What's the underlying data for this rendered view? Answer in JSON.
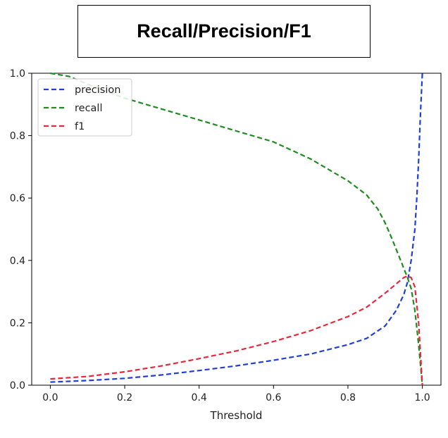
{
  "chart_data": {
    "type": "line",
    "title": "Recall/Precision/F1",
    "xlabel": "Threshold",
    "ylabel": "",
    "xlim": [
      -0.05,
      1.05
    ],
    "ylim": [
      0.0,
      1.0
    ],
    "xticks": [
      "0.0",
      "0.2",
      "0.4",
      "0.6",
      "0.8",
      "1.0"
    ],
    "yticks": [
      "0.0",
      "0.2",
      "0.4",
      "0.6",
      "0.8",
      "1.0"
    ],
    "grid": false,
    "legend_position": "top-left",
    "series": [
      {
        "name": "precision",
        "color": "#1f3fdc",
        "dash": "dashed",
        "x": [
          0.0,
          0.1,
          0.2,
          0.3,
          0.4,
          0.5,
          0.6,
          0.7,
          0.8,
          0.85,
          0.9,
          0.93,
          0.95,
          0.96,
          0.97,
          0.98,
          0.985,
          0.99,
          0.995,
          1.0
        ],
        "y": [
          0.01,
          0.015,
          0.022,
          0.033,
          0.047,
          0.062,
          0.08,
          0.1,
          0.13,
          0.15,
          0.19,
          0.24,
          0.29,
          0.33,
          0.4,
          0.5,
          0.6,
          0.72,
          0.87,
          1.0
        ]
      },
      {
        "name": "recall",
        "color": "#1f8c1f",
        "dash": "dashed",
        "x": [
          0.0,
          0.05,
          0.1,
          0.2,
          0.3,
          0.4,
          0.5,
          0.6,
          0.7,
          0.8,
          0.85,
          0.88,
          0.9,
          0.92,
          0.94,
          0.96,
          0.97,
          0.98,
          0.99,
          1.0
        ],
        "y": [
          1.0,
          0.99,
          0.965,
          0.92,
          0.885,
          0.85,
          0.815,
          0.78,
          0.725,
          0.655,
          0.61,
          0.565,
          0.52,
          0.465,
          0.405,
          0.345,
          0.31,
          0.24,
          0.13,
          0.0
        ]
      },
      {
        "name": "f1",
        "color": "#e8283a",
        "dash": "dashed",
        "x": [
          0.0,
          0.1,
          0.2,
          0.3,
          0.4,
          0.5,
          0.6,
          0.7,
          0.8,
          0.85,
          0.9,
          0.93,
          0.95,
          0.96,
          0.97,
          0.98,
          0.99,
          0.995,
          1.0
        ],
        "y": [
          0.02,
          0.028,
          0.043,
          0.062,
          0.085,
          0.11,
          0.14,
          0.175,
          0.22,
          0.25,
          0.295,
          0.325,
          0.345,
          0.35,
          0.345,
          0.315,
          0.2,
          0.1,
          0.0
        ]
      }
    ]
  }
}
